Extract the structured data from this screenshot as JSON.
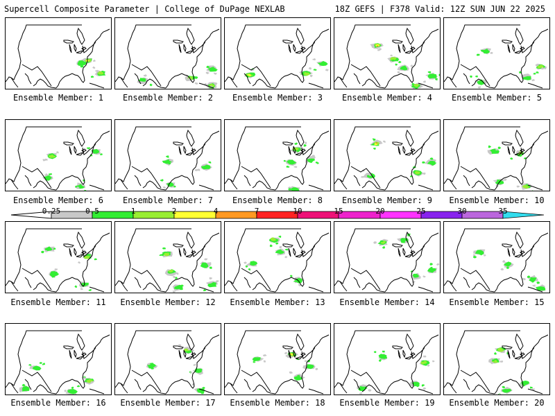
{
  "header": {
    "left": "Supercell Composite Parameter | College of DuPage NEXLAB",
    "right": "18Z GEFS | F378 Valid: 12Z SUN JUN 22 2025"
  },
  "panels": [
    {
      "label": "Ensemble Member: 1"
    },
    {
      "label": "Ensemble Member: 2"
    },
    {
      "label": "Ensemble Member: 3"
    },
    {
      "label": "Ensemble Member: 4"
    },
    {
      "label": "Ensemble Member: 5"
    },
    {
      "label": "Ensemble Member: 6"
    },
    {
      "label": "Ensemble Member: 7"
    },
    {
      "label": "Ensemble Member: 8"
    },
    {
      "label": "Ensemble Member: 9"
    },
    {
      "label": "Ensemble Member: 10"
    },
    {
      "label": "Ensemble Member: 11"
    },
    {
      "label": "Ensemble Member: 12"
    },
    {
      "label": "Ensemble Member: 13"
    },
    {
      "label": "Ensemble Member: 14"
    },
    {
      "label": "Ensemble Member: 15"
    },
    {
      "label": "Ensemble Member: 16"
    },
    {
      "label": "Ensemble Member: 17"
    },
    {
      "label": "Ensemble Member: 18"
    },
    {
      "label": "Ensemble Member: 19"
    },
    {
      "label": "Ensemble Member: 20"
    }
  ],
  "colorbar": {
    "ticks": [
      "0.25",
      "0.5",
      "1",
      "2",
      "4",
      "7",
      "10",
      "15",
      "20",
      "25",
      "30",
      "35"
    ],
    "colors": [
      "#c8c8c8",
      "#33ee33",
      "#99ee33",
      "#ffff33",
      "#ff9922",
      "#ff2222",
      "#ee1177",
      "#ee22cc",
      "#ff33ff",
      "#8822ee",
      "#bb66dd",
      "#33ddee"
    ]
  }
}
